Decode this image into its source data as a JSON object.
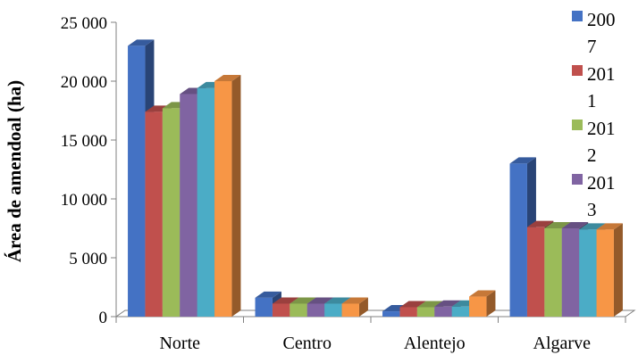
{
  "chart_data": {
    "type": "bar",
    "title": "",
    "xlabel": "",
    "ylabel": "Área de amendoal (ha)",
    "ylim": [
      0,
      25000
    ],
    "yticks": [
      0,
      5000,
      10000,
      15000,
      20000,
      25000
    ],
    "ytick_labels": [
      "0",
      "5 000",
      "10 000",
      "15 000",
      "20 000",
      "25 000"
    ],
    "categories": [
      "Norte",
      "Centro",
      "Alentejo",
      "Algarve"
    ],
    "legend_position": "right",
    "grid": false,
    "series": [
      {
        "name": "2007",
        "legend_lines": [
          "200",
          "7"
        ],
        "color": "#4472C4",
        "values": [
          23000,
          1600,
          450,
          13000
        ]
      },
      {
        "name": "2011",
        "legend_lines": [
          "201",
          "1"
        ],
        "color": "#C0504D",
        "values": [
          17400,
          1100,
          800,
          7600
        ]
      },
      {
        "name": "2012",
        "legend_lines": [
          "201",
          "2"
        ],
        "color": "#9BBB59",
        "values": [
          17700,
          1100,
          800,
          7500
        ]
      },
      {
        "name": "2013",
        "legend_lines": [
          "201",
          "3"
        ],
        "color": "#8064A2",
        "values": [
          18900,
          1100,
          850,
          7500
        ]
      },
      {
        "color": "#4BACC6",
        "values": [
          19400,
          1100,
          850,
          7400
        ]
      },
      {
        "color": "#F79646",
        "values": [
          20000,
          1100,
          1700,
          7400
        ]
      }
    ]
  }
}
